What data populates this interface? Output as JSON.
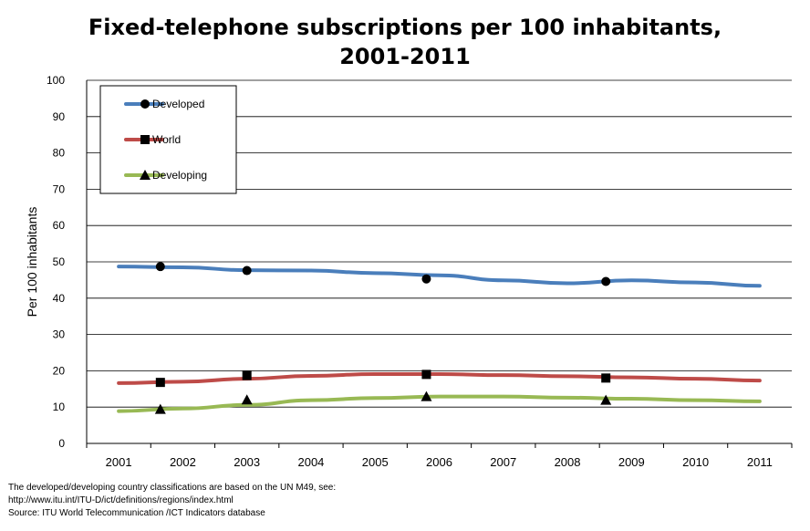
{
  "chart_data": {
    "type": "line",
    "title_lines": [
      "Fixed-telephone subscriptions per 100 inhabitants,",
      "2001-2011"
    ],
    "ylabel": "Per 100 inhabitants",
    "xlabel": "",
    "ylim": [
      0,
      100
    ],
    "yticks": [
      0,
      10,
      20,
      30,
      40,
      50,
      60,
      70,
      80,
      90,
      100
    ],
    "categories": [
      "2001",
      "2002",
      "2003",
      "2004",
      "2005",
      "2006",
      "2007",
      "2008",
      "2009",
      "2010",
      "2011"
    ],
    "grid": "horizontal",
    "legend_position": "top-left",
    "series": [
      {
        "name": "Developed",
        "color": "#4a7ebb",
        "marker": "circle",
        "values": [
          48.7,
          48.5,
          47.7,
          47.6,
          46.9,
          46.3,
          44.9,
          44.1,
          44.9,
          44.3,
          43.4
        ],
        "marker_points": [
          {
            "x": 1.65,
            "y": 48.7
          },
          {
            "x": 3.0,
            "y": 47.6
          },
          {
            "x": 5.8,
            "y": 45.3
          },
          {
            "x": 8.6,
            "y": 44.6
          }
        ]
      },
      {
        "name": "World",
        "color": "#be4b48",
        "marker": "square",
        "values": [
          16.6,
          17.0,
          17.8,
          18.6,
          19.1,
          19.1,
          18.8,
          18.5,
          18.2,
          17.8,
          17.3
        ],
        "marker_points": [
          {
            "x": 1.65,
            "y": 16.8
          },
          {
            "x": 3.0,
            "y": 18.7
          },
          {
            "x": 5.8,
            "y": 19.0
          },
          {
            "x": 8.6,
            "y": 18.0
          }
        ]
      },
      {
        "name": "Developing",
        "color": "#98b954",
        "marker": "triangle",
        "values": [
          8.9,
          9.6,
          10.6,
          11.9,
          12.5,
          12.9,
          12.9,
          12.6,
          12.3,
          11.9,
          11.6
        ],
        "marker_points": [
          {
            "x": 1.65,
            "y": 9.4
          },
          {
            "x": 3.0,
            "y": 12.0
          },
          {
            "x": 5.8,
            "y": 12.9
          },
          {
            "x": 8.6,
            "y": 11.9
          }
        ]
      }
    ]
  },
  "notes": [
    "The developed/developing country classifications are based on the  UN M49, see:",
    "http://www.itu.int/ITU-D/ict/definitions/regions/index.html",
    "Source:  ITU World Telecommunication /ICT Indicators database"
  ]
}
